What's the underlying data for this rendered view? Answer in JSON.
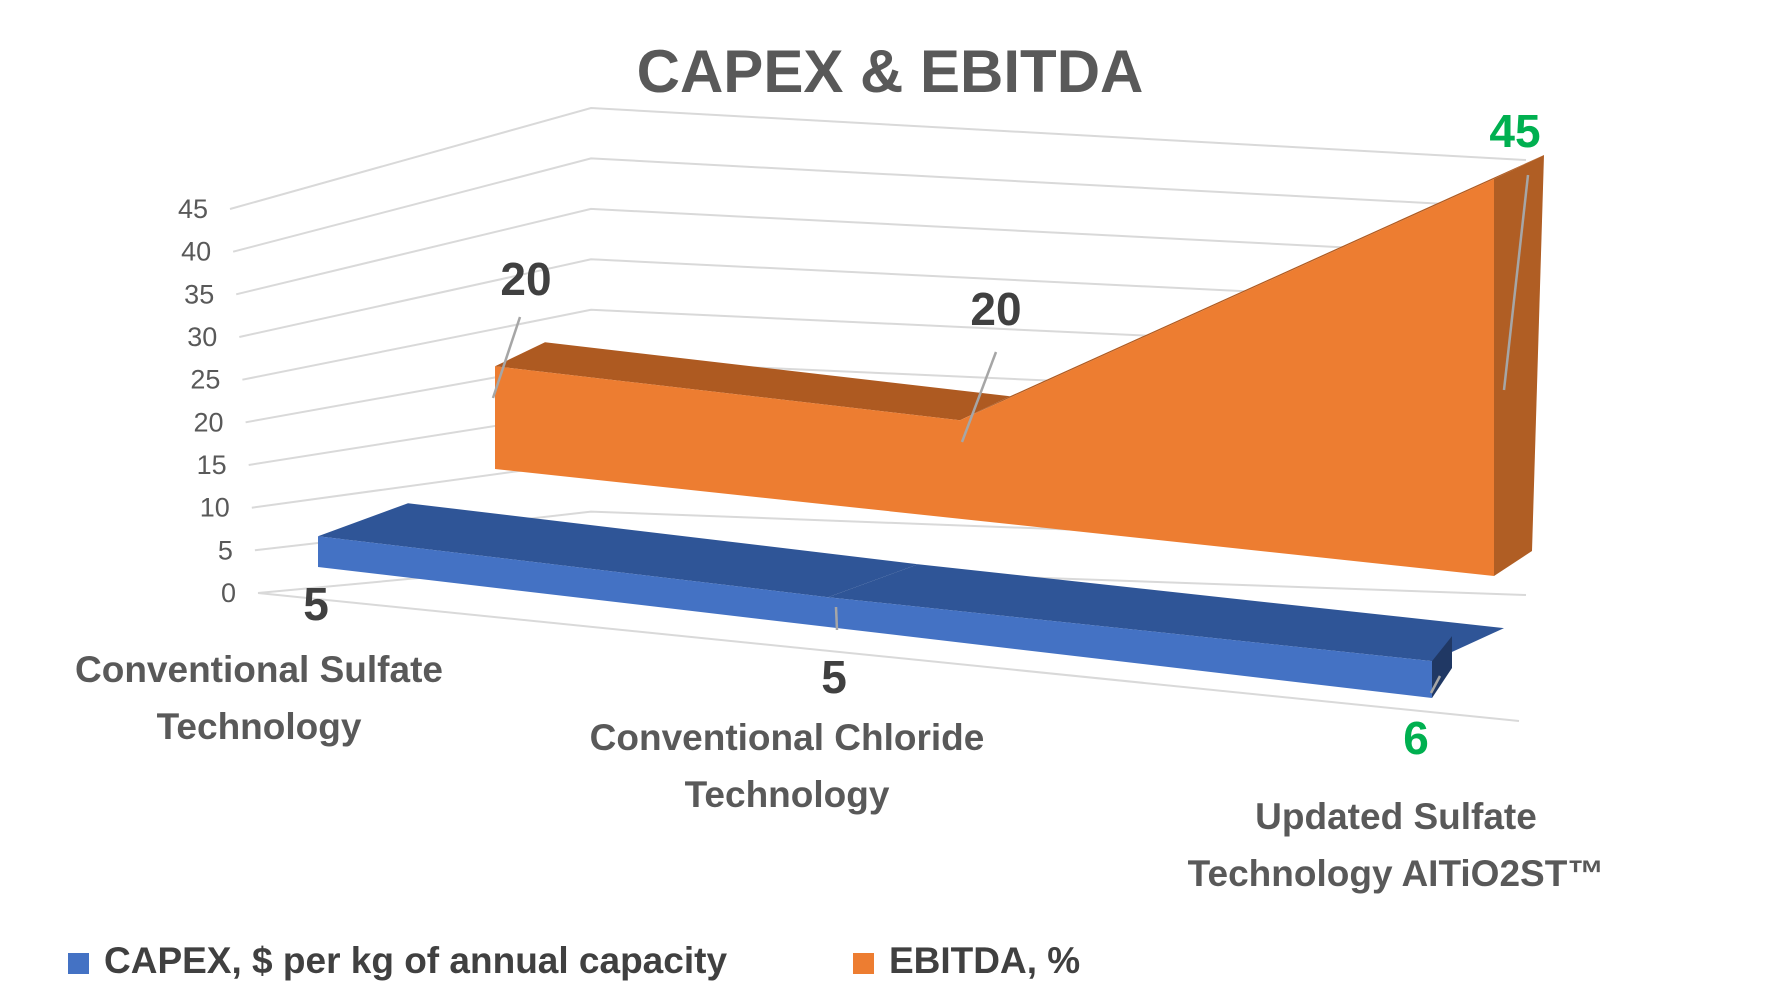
{
  "chart_data": {
    "type": "area",
    "title": "CAPEX & EBITDA",
    "categories": [
      [
        "Conventional Sulfate",
        "Technology"
      ],
      [
        "Conventional Chloride",
        "Technology"
      ],
      [
        "Updated Sulfate",
        "Technology AITiO2ST™"
      ]
    ],
    "y_ticks": [
      "0",
      "5",
      "10",
      "15",
      "20",
      "25",
      "30",
      "35",
      "40",
      "45"
    ],
    "ylim": [
      0,
      45
    ],
    "series": [
      {
        "name": "CAPEX, $ per kg of annual capacity",
        "values": [
          5,
          5,
          6
        ],
        "labels": [
          "5",
          "5",
          "6"
        ],
        "color": "#4472C4",
        "label_colors": [
          "#404040",
          "#404040",
          "#00B050"
        ]
      },
      {
        "name": "EBITDA, %",
        "values": [
          20,
          20,
          45
        ],
        "labels": [
          "20",
          "20",
          "45"
        ],
        "color": "#ED7D31",
        "label_colors": [
          "#404040",
          "#404040",
          "#00B050"
        ]
      }
    ],
    "legend_position": "bottom-left",
    "grid": true
  }
}
